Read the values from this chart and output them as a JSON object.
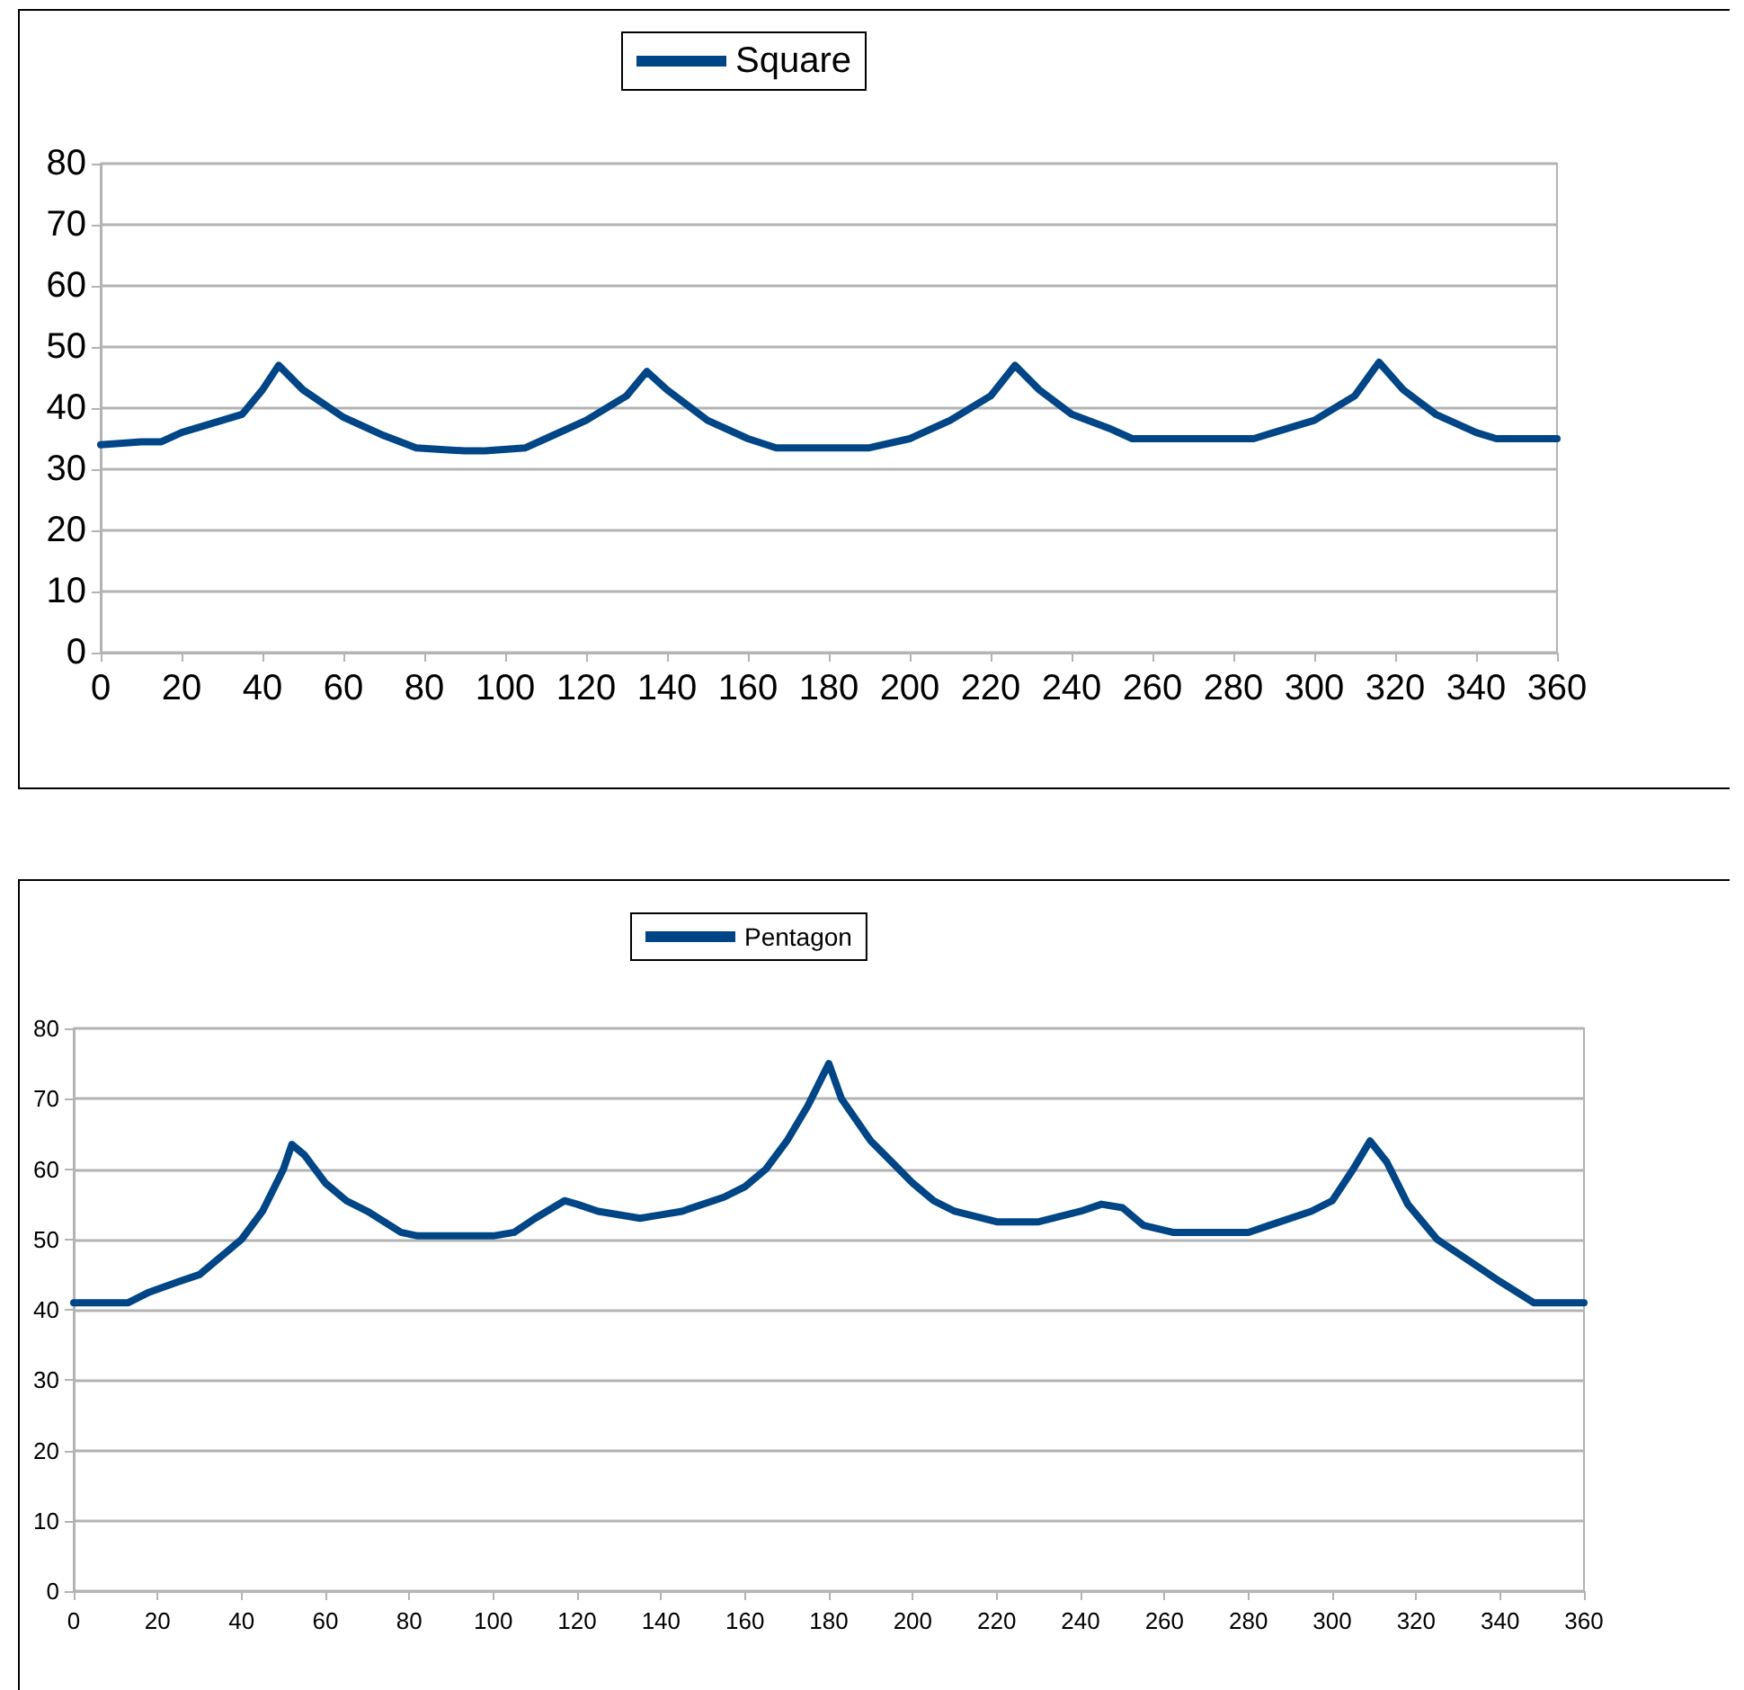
{
  "chart_data": [
    {
      "type": "line",
      "xlim": [
        0,
        360
      ],
      "xticks": [
        0,
        20,
        40,
        60,
        80,
        100,
        120,
        140,
        160,
        180,
        200,
        220,
        240,
        260,
        280,
        300,
        320,
        340,
        360
      ],
      "ylim": [
        0,
        80
      ],
      "yticks": [
        0,
        10,
        20,
        30,
        40,
        50,
        60,
        70,
        80
      ],
      "grid": "y",
      "legend": "top",
      "marker": "none",
      "line_style": "solid",
      "series": [
        {
          "name": "Square",
          "color": "#004586",
          "x": [
            0,
            10,
            15,
            20,
            30,
            35,
            40,
            44,
            50,
            60,
            70,
            78,
            90,
            95,
            105,
            110,
            120,
            130,
            135,
            140,
            150,
            160,
            167,
            190,
            200,
            210,
            220,
            226,
            232,
            240,
            250,
            255,
            285,
            290,
            300,
            310,
            316,
            322,
            330,
            340,
            345,
            360
          ],
          "values": [
            34,
            34.5,
            34.5,
            36,
            38,
            39,
            43,
            47,
            43,
            38.5,
            35.5,
            33.5,
            33,
            33,
            33.5,
            35,
            38,
            42,
            46,
            43,
            38,
            35,
            33.5,
            33.5,
            35,
            38,
            42,
            47,
            43,
            39,
            36.5,
            35,
            35,
            36,
            38,
            42,
            47.5,
            43,
            39,
            36,
            35,
            35
          ]
        }
      ]
    },
    {
      "type": "line",
      "xlim": [
        0,
        360
      ],
      "xticks": [
        0,
        20,
        40,
        60,
        80,
        100,
        120,
        140,
        160,
        180,
        200,
        220,
        240,
        260,
        280,
        300,
        320,
        340,
        360
      ],
      "ylim": [
        0,
        80
      ],
      "yticks": [
        0,
        10,
        20,
        30,
        40,
        50,
        60,
        70,
        80
      ],
      "grid": "y",
      "legend": "top",
      "marker": "none",
      "line_style": "solid",
      "series": [
        {
          "name": "Pentagon",
          "color": "#004586",
          "x": [
            0,
            13,
            18,
            25,
            30,
            40,
            45,
            50,
            52,
            55,
            60,
            65,
            70,
            78,
            82,
            100,
            105,
            110,
            117,
            120,
            125,
            135,
            140,
            145,
            155,
            160,
            165,
            170,
            175,
            180,
            183,
            190,
            195,
            200,
            205,
            210,
            220,
            230,
            240,
            245,
            250,
            255,
            262,
            280,
            285,
            295,
            300,
            305,
            309,
            313,
            318,
            325,
            335,
            340,
            348,
            360
          ],
          "values": [
            41,
            41,
            42.5,
            44,
            45,
            50,
            54,
            60,
            63.5,
            62,
            58,
            55.5,
            54,
            51,
            50.5,
            50.5,
            51,
            53,
            55.5,
            55,
            54,
            53,
            53.5,
            54,
            56,
            57.5,
            60,
            64,
            69,
            75,
            70,
            64,
            61,
            58,
            55.5,
            54,
            52.5,
            52.5,
            54,
            55,
            54.5,
            52,
            51,
            51,
            52,
            54,
            55.5,
            60,
            64,
            61,
            55,
            50,
            46,
            44,
            41,
            41
          ]
        }
      ]
    }
  ]
}
